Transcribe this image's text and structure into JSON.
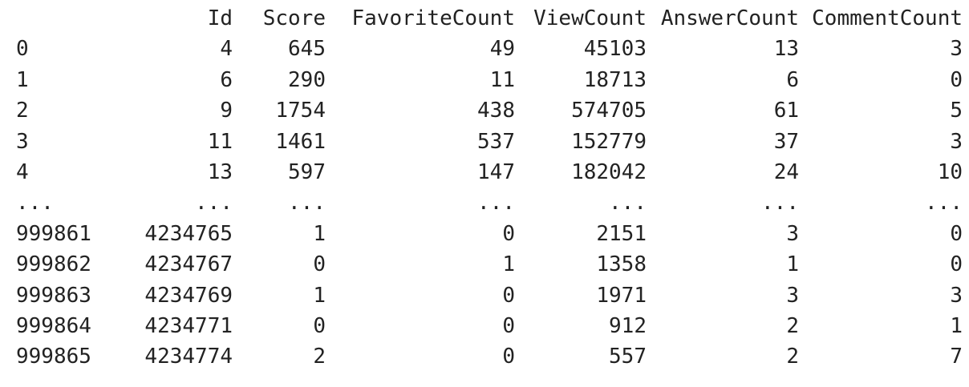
{
  "dataframe": {
    "index_header": "",
    "columns": [
      "Id",
      "Score",
      "FavoriteCount",
      "ViewCount",
      "AnswerCount",
      "CommentCount"
    ],
    "rows": [
      {
        "index": "0",
        "cells": [
          "4",
          "645",
          "49",
          "45103",
          "13",
          "3"
        ]
      },
      {
        "index": "1",
        "cells": [
          "6",
          "290",
          "11",
          "18713",
          "6",
          "0"
        ]
      },
      {
        "index": "2",
        "cells": [
          "9",
          "1754",
          "438",
          "574705",
          "61",
          "5"
        ]
      },
      {
        "index": "3",
        "cells": [
          "11",
          "1461",
          "537",
          "152779",
          "37",
          "3"
        ]
      },
      {
        "index": "4",
        "cells": [
          "13",
          "597",
          "147",
          "182042",
          "24",
          "10"
        ]
      },
      {
        "index": "...",
        "cells": [
          "...",
          "...",
          "...",
          "...",
          "...",
          "..."
        ]
      },
      {
        "index": "999861",
        "cells": [
          "4234765",
          "1",
          "0",
          "2151",
          "3",
          "0"
        ]
      },
      {
        "index": "999862",
        "cells": [
          "4234767",
          "0",
          "1",
          "1358",
          "1",
          "0"
        ]
      },
      {
        "index": "999863",
        "cells": [
          "4234769",
          "1",
          "0",
          "1971",
          "3",
          "3"
        ]
      },
      {
        "index": "999864",
        "cells": [
          "4234771",
          "0",
          "0",
          "912",
          "2",
          "1"
        ]
      },
      {
        "index": "999865",
        "cells": [
          "4234774",
          "2",
          "0",
          "557",
          "2",
          "7"
        ]
      }
    ]
  }
}
